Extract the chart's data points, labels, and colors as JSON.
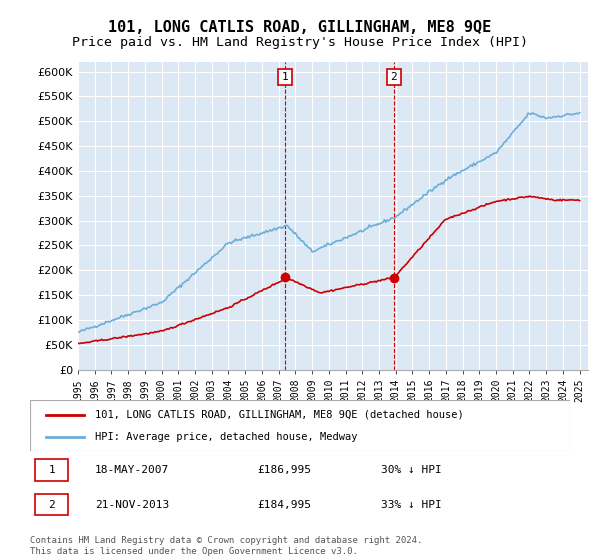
{
  "title": "101, LONG CATLIS ROAD, GILLINGHAM, ME8 9QE",
  "subtitle": "Price paid vs. HM Land Registry's House Price Index (HPI)",
  "title_fontsize": 11,
  "subtitle_fontsize": 9.5,
  "ylabel_ticks": [
    "£0",
    "£50K",
    "£100K",
    "£150K",
    "£200K",
    "£250K",
    "£300K",
    "£350K",
    "£400K",
    "£450K",
    "£500K",
    "£550K",
    "£600K"
  ],
  "ytick_values": [
    0,
    50000,
    100000,
    150000,
    200000,
    250000,
    300000,
    350000,
    400000,
    450000,
    500000,
    550000,
    600000
  ],
  "ylim": [
    0,
    620000
  ],
  "xlim_start": 1995.0,
  "xlim_end": 2025.5,
  "background_color": "#dce9f5",
  "plot_bg_color": "#dce9f5",
  "grid_color": "#ffffff",
  "hpi_color": "#6baed6",
  "price_color": "#cc0000",
  "marker_color": "#cc0000",
  "sale1_x": 2007.38,
  "sale1_y": 186995,
  "sale1_label": "1",
  "sale2_x": 2013.89,
  "sale2_y": 184995,
  "sale2_label": "2",
  "dashed_line_color": "#cc0000",
  "legend_label_red": "101, LONG CATLIS ROAD, GILLINGHAM, ME8 9QE (detached house)",
  "legend_label_blue": "HPI: Average price, detached house, Medway",
  "table_rows": [
    {
      "num": "1",
      "date": "18-MAY-2007",
      "price": "£186,995",
      "pct": "30% ↓ HPI"
    },
    {
      "num": "2",
      "date": "21-NOV-2013",
      "price": "£184,995",
      "pct": "33% ↓ HPI"
    }
  ],
  "footnote": "Contains HM Land Registry data © Crown copyright and database right 2024.\nThis data is licensed under the Open Government Licence v3.0.",
  "xtick_years": [
    1995,
    1996,
    1997,
    1998,
    1999,
    2000,
    2001,
    2002,
    2003,
    2004,
    2005,
    2006,
    2007,
    2008,
    2009,
    2010,
    2011,
    2012,
    2013,
    2014,
    2015,
    2016,
    2017,
    2018,
    2019,
    2020,
    2021,
    2022,
    2023,
    2024,
    2025
  ]
}
